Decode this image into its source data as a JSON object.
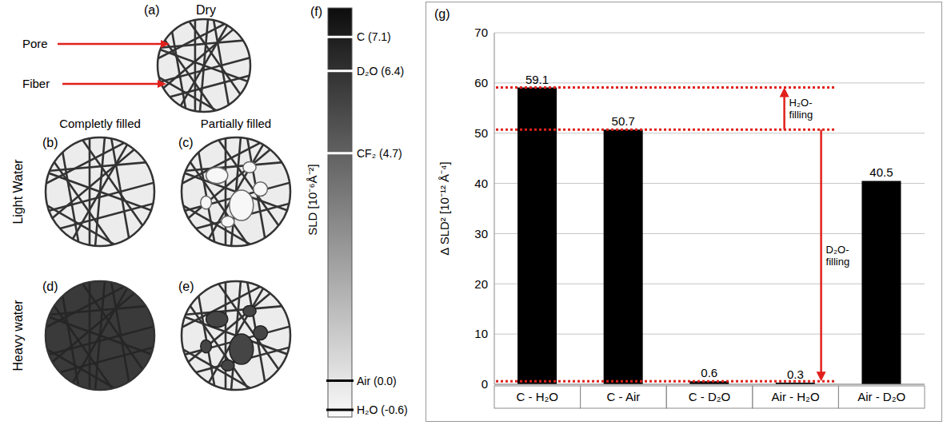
{
  "diagram": {
    "panels": [
      {
        "letter": "(a)",
        "title": "Dry"
      },
      {
        "letter": "(b)"
      },
      {
        "letter": "(c)"
      },
      {
        "letter": "(d)"
      },
      {
        "letter": "(e)"
      }
    ],
    "pointers": [
      "Pore",
      "Fiber"
    ],
    "column_heads": [
      "Completly filled",
      "Partially filled"
    ],
    "row_heads": [
      "Light Water",
      "Heavy water"
    ]
  },
  "scale": {
    "title": "(f)",
    "label": "SLD [10⁻⁶Å⁻²]",
    "lim": [
      -0.75,
      7.7
    ],
    "marks": [
      {
        "text": "C (7.1)",
        "value": 7.1
      },
      {
        "text": "D₂O (6.4)",
        "value": 6.4
      },
      {
        "text": "CF₂ (4.7)",
        "value": 4.7
      },
      {
        "text": "Air (0.0)",
        "value": 0.0
      },
      {
        "text": "H₂O (-0.6)",
        "value": -0.6
      }
    ]
  },
  "chart_data": {
    "type": "bar",
    "title": "(g)",
    "y_label": "Δ SLD² [10⁻¹² Å⁻⁴]",
    "categories": [
      "C - H₂O",
      "C - Air",
      "C - D₂O",
      "Air - H₂O",
      "Air - D₂O"
    ],
    "values": [
      59.1,
      50.7,
      0.6,
      0.3,
      40.5
    ],
    "color": "#000000",
    "ylim": [
      0,
      70
    ],
    "yticks": [
      0,
      10,
      20,
      30,
      40,
      50,
      60,
      70
    ],
    "grid": true,
    "data_labels": true,
    "annotations": [
      {
        "text": "H₂O-filling",
        "from": 50.7,
        "to": 59.1
      },
      {
        "text": "D₂O-filling",
        "from": 50.7,
        "to": 0.6
      }
    ]
  }
}
